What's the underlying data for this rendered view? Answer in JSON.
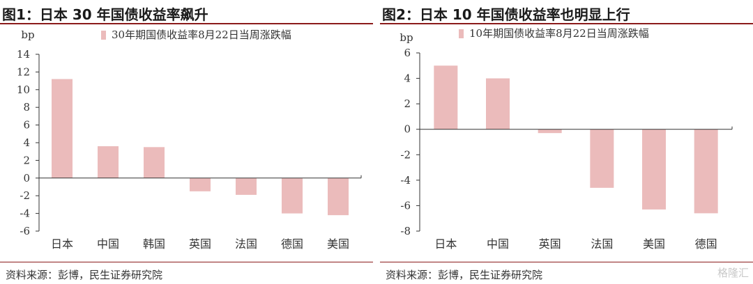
{
  "charts": [
    {
      "figure_title": "图1：日本 30 年国债收益率飙升",
      "source": "资料来源：彭博，民生证券研究院"
    },
    {
      "figure_title": "图2：日本 10 年国债收益率也明显上行",
      "source": "资料来源：彭博，民生证券研究院",
      "watermark": "格隆汇"
    }
  ],
  "colors": {
    "bar": "#ebbbbb",
    "axis": "#333333",
    "rule": "#8b1a1a"
  },
  "chart_data": [
    {
      "type": "bar",
      "title": "图1：日本 30 年国债收益率飙升",
      "ylabel": "bp",
      "legend": "30年期国债收益率8月22日当周涨跌幅",
      "categories": [
        "日本",
        "中国",
        "韩国",
        "英国",
        "法国",
        "德国",
        "美国"
      ],
      "values": [
        11.2,
        3.6,
        3.5,
        -1.5,
        -1.9,
        -4.0,
        -4.2
      ],
      "ylim": [
        -6,
        14
      ],
      "yticks": [
        -6,
        -4,
        -2,
        0,
        2,
        4,
        6,
        8,
        10,
        12,
        14
      ]
    },
    {
      "type": "bar",
      "title": "图2：日本 10 年国债收益率也明显上行",
      "ylabel": "bp",
      "legend": "10年期国债收益率8月22日当周涨跌幅",
      "categories": [
        "日本",
        "中国",
        "英国",
        "法国",
        "美国",
        "德国"
      ],
      "values": [
        5.0,
        4.0,
        -0.3,
        -4.6,
        -6.3,
        -6.6
      ],
      "ylim": [
        -8,
        6
      ],
      "yticks": [
        -8,
        -6,
        -4,
        -2,
        0,
        2,
        4,
        6
      ]
    }
  ]
}
